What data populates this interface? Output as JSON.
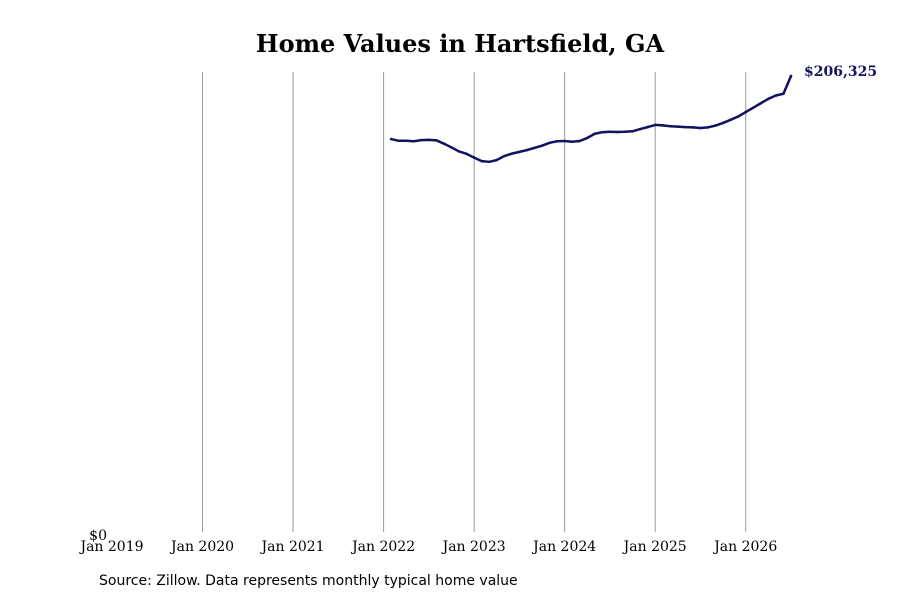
{
  "chart_data": {
    "type": "line",
    "title": "Home Values in Hartsfield, GA",
    "xlabel": "",
    "ylabel": "",
    "x_axis": {
      "start": "2019-01",
      "end": "2026-07",
      "tick_labels": [
        "Jan 2019",
        "Jan 2020",
        "Jan 2021",
        "Jan 2022",
        "Jan 2023",
        "Jan 2024",
        "Jan 2025",
        "Jan 2026"
      ]
    },
    "y_axis": {
      "ylim": [
        0,
        206325
      ],
      "tick_labels": [
        {
          "value": 0,
          "label": "$0"
        }
      ]
    },
    "grid": {
      "vertical": true,
      "horizontal": false,
      "color": "#999999"
    },
    "series": [
      {
        "color": "#12125e",
        "x": [
          "2022-02",
          "2022-03",
          "2022-04",
          "2022-05",
          "2022-06",
          "2022-07",
          "2022-08",
          "2022-09",
          "2022-10",
          "2022-11",
          "2022-12",
          "2023-01",
          "2023-02",
          "2023-03",
          "2023-04",
          "2023-05",
          "2023-06",
          "2023-07",
          "2023-08",
          "2023-09",
          "2023-10",
          "2023-11",
          "2023-12",
          "2024-01",
          "2024-02",
          "2024-03",
          "2024-04",
          "2024-05",
          "2024-06",
          "2024-07",
          "2024-08",
          "2024-09",
          "2024-10",
          "2024-11",
          "2024-12",
          "2025-01",
          "2025-02",
          "2025-03",
          "2025-04",
          "2025-05",
          "2025-06",
          "2025-07",
          "2025-08",
          "2025-09",
          "2025-10",
          "2025-11",
          "2025-12",
          "2026-01",
          "2026-02",
          "2026-03",
          "2026-04",
          "2026-05",
          "2026-06",
          "2026-07"
        ],
        "values": [
          177800,
          177000,
          177000,
          176800,
          177300,
          177400,
          177200,
          175700,
          174000,
          172200,
          171100,
          169400,
          167800,
          167500,
          168300,
          170100,
          171200,
          172000,
          172800,
          173800,
          174800,
          176100,
          176800,
          176900,
          176600,
          176900,
          178300,
          180200,
          180900,
          181100,
          181000,
          181100,
          181300,
          182300,
          183200,
          184200,
          184000,
          183600,
          183400,
          183200,
          183100,
          182800,
          183100,
          183900,
          185100,
          186500,
          188000,
          190000,
          192000,
          194000,
          196000,
          197500,
          198300,
          206325
        ]
      }
    ],
    "end_label": "$206,325",
    "legend": "none"
  },
  "footer": {
    "source_text": "Source: Zillow. Data represents monthly typical home value"
  }
}
